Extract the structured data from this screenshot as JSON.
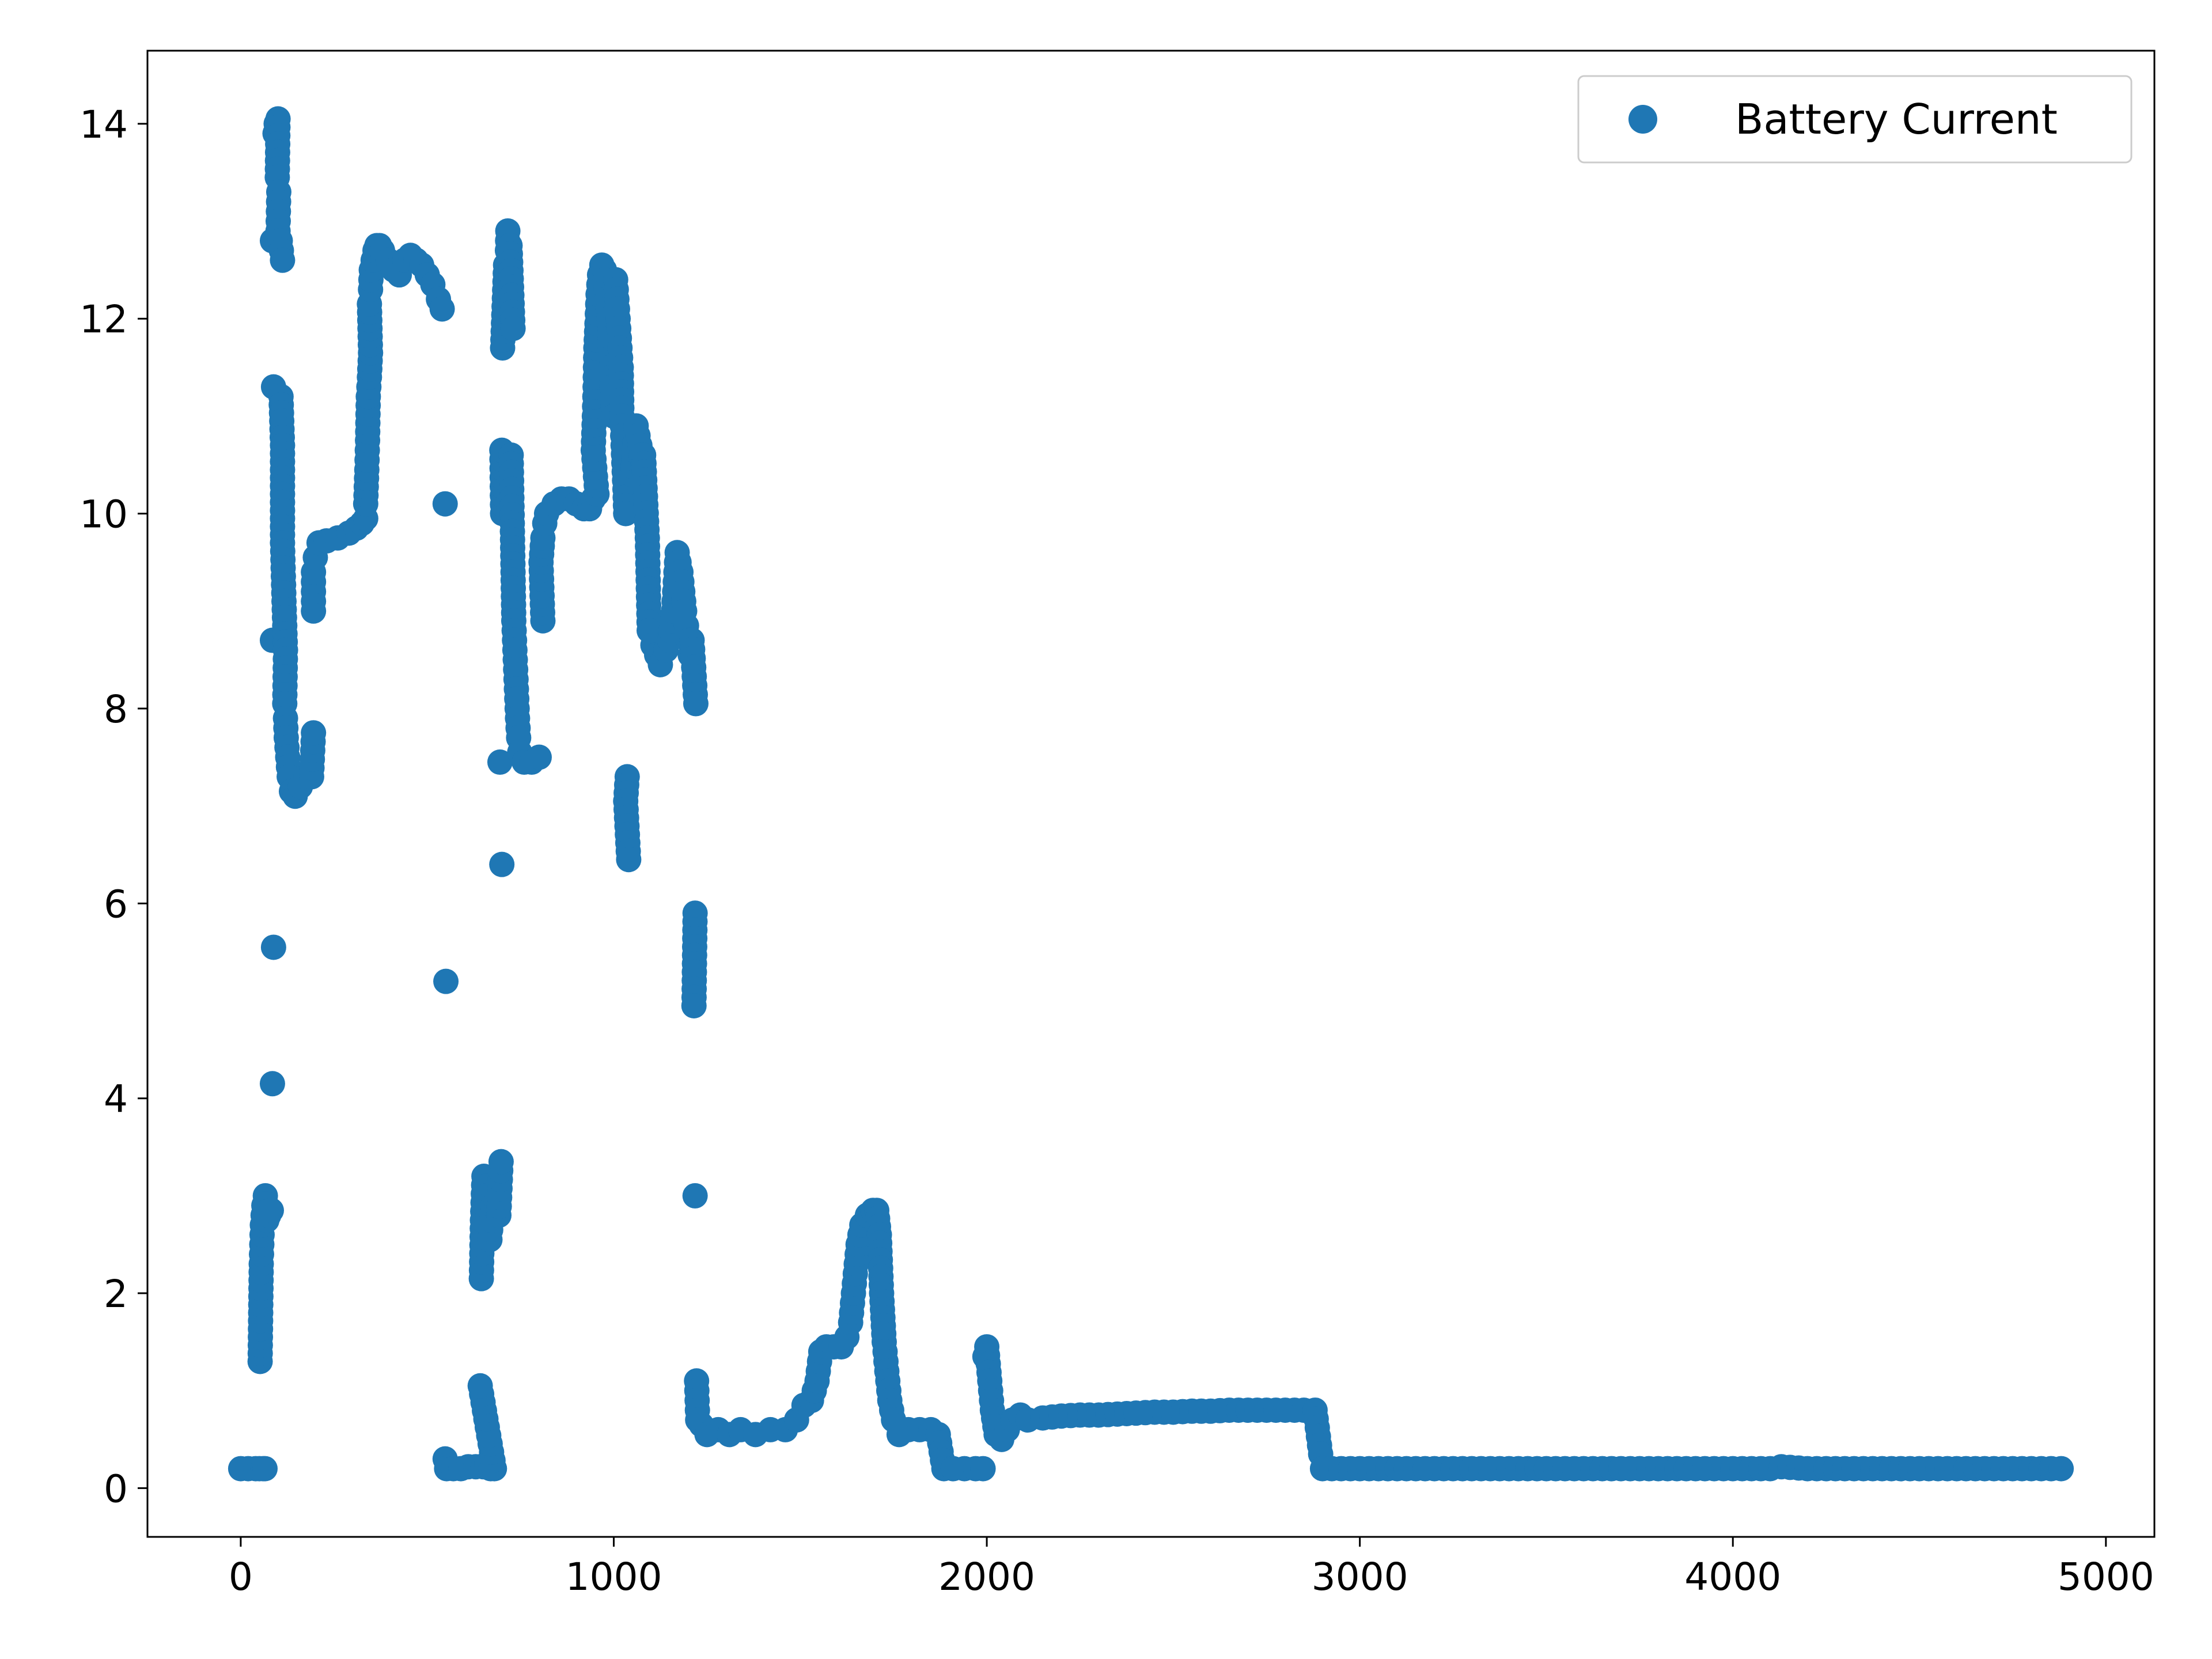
{
  "chart_data": {
    "type": "scatter",
    "title": "",
    "xlabel": "",
    "ylabel": "",
    "xlim": [
      -250,
      5130
    ],
    "ylim": [
      -0.5,
      14.75
    ],
    "xticks": [
      0,
      1000,
      2000,
      3000,
      4000,
      5000
    ],
    "yticks": [
      0,
      2,
      4,
      6,
      8,
      10,
      12,
      14
    ],
    "grid": false,
    "legend": {
      "position": "top-right",
      "entries": [
        "Battery Current"
      ]
    },
    "series": [
      {
        "name": "Battery Current",
        "color": "#1f77b4",
        "marker": "circle",
        "points": [
          [
            0,
            0.2
          ],
          [
            20,
            0.2
          ],
          [
            40,
            0.2
          ],
          [
            50,
            0.2
          ],
          [
            60,
            0.2
          ],
          [
            65,
            0.2
          ],
          [
            52,
            1.3
          ],
          [
            55,
            2.3
          ],
          [
            58,
            2.7
          ],
          [
            62,
            2.9
          ],
          [
            66,
            3.0
          ],
          [
            70,
            2.75
          ],
          [
            75,
            2.8
          ],
          [
            82,
            2.85
          ],
          [
            85,
            4.15
          ],
          [
            88,
            5.55
          ],
          [
            85,
            8.7
          ],
          [
            88,
            11.3
          ],
          [
            85,
            12.8
          ],
          [
            92,
            13.9
          ],
          [
            95,
            14.0
          ],
          [
            100,
            14.05
          ],
          [
            98,
            13.45
          ],
          [
            102,
            13.3
          ],
          [
            100,
            12.9
          ],
          [
            106,
            12.8
          ],
          [
            112,
            12.6
          ],
          [
            108,
            11.2
          ],
          [
            112,
            10.7
          ],
          [
            112,
            9.7
          ],
          [
            116,
            9.1
          ],
          [
            120,
            8.6
          ],
          [
            118,
            8.05
          ],
          [
            120,
            7.9
          ],
          [
            122,
            7.7
          ],
          [
            126,
            7.5
          ],
          [
            130,
            7.3
          ],
          [
            136,
            7.15
          ],
          [
            146,
            7.1
          ],
          [
            160,
            7.2
          ],
          [
            175,
            7.3
          ],
          [
            190,
            7.3
          ],
          [
            195,
            7.75
          ],
          [
            195,
            9.0
          ],
          [
            195,
            9.4
          ],
          [
            200,
            9.55
          ],
          [
            210,
            9.7
          ],
          [
            230,
            9.72
          ],
          [
            260,
            9.75
          ],
          [
            290,
            9.8
          ],
          [
            310,
            9.85
          ],
          [
            325,
            9.9
          ],
          [
            335,
            9.95
          ],
          [
            335,
            10.1
          ],
          [
            338,
            10.45
          ],
          [
            340,
            10.75
          ],
          [
            342,
            11.2
          ],
          [
            345,
            11.4
          ],
          [
            348,
            11.65
          ],
          [
            345,
            12.15
          ],
          [
            348,
            12.3
          ],
          [
            350,
            12.5
          ],
          [
            355,
            12.6
          ],
          [
            360,
            12.7
          ],
          [
            365,
            12.75
          ],
          [
            372,
            12.75
          ],
          [
            380,
            12.7
          ],
          [
            395,
            12.6
          ],
          [
            410,
            12.5
          ],
          [
            425,
            12.45
          ],
          [
            440,
            12.6
          ],
          [
            455,
            12.65
          ],
          [
            470,
            12.6
          ],
          [
            485,
            12.55
          ],
          [
            500,
            12.45
          ],
          [
            515,
            12.35
          ],
          [
            530,
            12.2
          ],
          [
            540,
            12.1
          ],
          [
            548,
            10.1
          ],
          [
            550,
            5.2
          ],
          [
            548,
            0.3
          ],
          [
            552,
            0.2
          ],
          [
            570,
            0.2
          ],
          [
            590,
            0.2
          ],
          [
            610,
            0.22
          ],
          [
            630,
            0.22
          ],
          [
            650,
            0.22
          ],
          [
            660,
            0.25
          ],
          [
            670,
            0.2
          ],
          [
            680,
            0.2
          ],
          [
            642,
            1.05
          ],
          [
            645,
            2.15
          ],
          [
            648,
            2.75
          ],
          [
            652,
            3.2
          ],
          [
            658,
            3.1
          ],
          [
            664,
            2.7
          ],
          [
            668,
            2.55
          ],
          [
            672,
            2.75
          ],
          [
            676,
            2.9
          ],
          [
            680,
            3.0
          ],
          [
            686,
            2.95
          ],
          [
            692,
            2.8
          ],
          [
            698,
            3.35
          ],
          [
            700,
            6.4
          ],
          [
            695,
            7.45
          ],
          [
            702,
            10.0
          ],
          [
            700,
            10.65
          ],
          [
            702,
            11.7
          ],
          [
            710,
            12.55
          ],
          [
            715,
            12.7
          ],
          [
            716,
            12.9
          ],
          [
            722,
            12.75
          ],
          [
            730,
            11.9
          ],
          [
            725,
            10.6
          ],
          [
            728,
            9.9
          ],
          [
            730,
            9.4
          ],
          [
            732,
            8.9
          ],
          [
            735,
            8.6
          ],
          [
            738,
            8.3
          ],
          [
            740,
            8.1
          ],
          [
            742,
            7.9
          ],
          [
            745,
            7.7
          ],
          [
            748,
            7.55
          ],
          [
            760,
            7.45
          ],
          [
            780,
            7.45
          ],
          [
            800,
            7.5
          ],
          [
            810,
            8.9
          ],
          [
            805,
            9.5
          ],
          [
            810,
            9.75
          ],
          [
            815,
            9.9
          ],
          [
            820,
            10.0
          ],
          [
            840,
            10.1
          ],
          [
            860,
            10.15
          ],
          [
            880,
            10.15
          ],
          [
            900,
            10.1
          ],
          [
            920,
            10.05
          ],
          [
            935,
            10.05
          ],
          [
            945,
            10.15
          ],
          [
            955,
            10.2
          ],
          [
            945,
            10.65
          ],
          [
            948,
            11.0
          ],
          [
            950,
            11.3
          ],
          [
            952,
            11.7
          ],
          [
            955,
            11.95
          ],
          [
            958,
            12.25
          ],
          [
            962,
            12.45
          ],
          [
            968,
            12.55
          ],
          [
            975,
            12.5
          ],
          [
            980,
            12.3
          ],
          [
            985,
            12.1
          ],
          [
            990,
            11.9
          ],
          [
            992,
            11.6
          ],
          [
            995,
            11.3
          ],
          [
            1000,
            11.0
          ],
          [
            1005,
            12.4
          ],
          [
            1010,
            12.1
          ],
          [
            1015,
            11.8
          ],
          [
            1020,
            11.5
          ],
          [
            1022,
            11.0
          ],
          [
            1025,
            10.7
          ],
          [
            1030,
            10.25
          ],
          [
            1032,
            10.0
          ],
          [
            1036,
            7.3
          ],
          [
            1032,
            7.05
          ],
          [
            1040,
            6.45
          ],
          [
            1050,
            10.4
          ],
          [
            1060,
            10.9
          ],
          [
            1070,
            10.7
          ],
          [
            1078,
            10.5
          ],
          [
            1080,
            10.6
          ],
          [
            1090,
            9.75
          ],
          [
            1095,
            8.8
          ],
          [
            1105,
            8.65
          ],
          [
            1115,
            8.55
          ],
          [
            1125,
            8.45
          ],
          [
            1140,
            8.6
          ],
          [
            1150,
            8.7
          ],
          [
            1160,
            9.0
          ],
          [
            1165,
            9.3
          ],
          [
            1170,
            9.6
          ],
          [
            1180,
            9.4
          ],
          [
            1185,
            9.2
          ],
          [
            1190,
            9.0
          ],
          [
            1195,
            8.85
          ],
          [
            1200,
            8.7
          ],
          [
            1205,
            8.55
          ],
          [
            1210,
            8.7
          ],
          [
            1220,
            8.05
          ],
          [
            1218,
            5.9
          ],
          [
            1215,
            4.95
          ],
          [
            1218,
            3.0
          ],
          [
            1222,
            1.1
          ],
          [
            1225,
            0.7
          ],
          [
            1235,
            0.65
          ],
          [
            1250,
            0.55
          ],
          [
            1280,
            0.6
          ],
          [
            1310,
            0.55
          ],
          [
            1340,
            0.6
          ],
          [
            1380,
            0.55
          ],
          [
            1420,
            0.6
          ],
          [
            1460,
            0.6
          ],
          [
            1490,
            0.7
          ],
          [
            1510,
            0.85
          ],
          [
            1530,
            0.9
          ],
          [
            1545,
            1.1
          ],
          [
            1555,
            1.4
          ],
          [
            1570,
            1.45
          ],
          [
            1590,
            1.45
          ],
          [
            1610,
            1.45
          ],
          [
            1625,
            1.55
          ],
          [
            1635,
            1.7
          ],
          [
            1645,
            2.1
          ],
          [
            1655,
            2.5
          ],
          [
            1665,
            2.7
          ],
          [
            1680,
            2.8
          ],
          [
            1695,
            2.85
          ],
          [
            1705,
            2.85
          ],
          [
            1712,
            2.6
          ],
          [
            1718,
            2.0
          ],
          [
            1725,
            1.5
          ],
          [
            1732,
            1.2
          ],
          [
            1740,
            0.9
          ],
          [
            1750,
            0.7
          ],
          [
            1765,
            0.55
          ],
          [
            1790,
            0.6
          ],
          [
            1820,
            0.6
          ],
          [
            1850,
            0.6
          ],
          [
            1870,
            0.55
          ],
          [
            1885,
            0.2
          ],
          [
            1910,
            0.2
          ],
          [
            1940,
            0.2
          ],
          [
            1970,
            0.2
          ],
          [
            1990,
            0.2
          ],
          [
            1995,
            1.35
          ],
          [
            2000,
            1.45
          ],
          [
            2008,
            1.1
          ],
          [
            2015,
            0.8
          ],
          [
            2025,
            0.55
          ],
          [
            2040,
            0.5
          ],
          [
            2055,
            0.6
          ],
          [
            2070,
            0.7
          ],
          [
            2090,
            0.75
          ],
          [
            2110,
            0.7
          ],
          [
            2150,
            0.72
          ],
          [
            2200,
            0.74
          ],
          [
            2250,
            0.75
          ],
          [
            2300,
            0.75
          ],
          [
            2350,
            0.76
          ],
          [
            2400,
            0.77
          ],
          [
            2450,
            0.78
          ],
          [
            2500,
            0.78
          ],
          [
            2550,
            0.79
          ],
          [
            2600,
            0.79
          ],
          [
            2650,
            0.8
          ],
          [
            2700,
            0.8
          ],
          [
            2750,
            0.8
          ],
          [
            2800,
            0.8
          ],
          [
            2850,
            0.8
          ],
          [
            2880,
            0.8
          ],
          [
            2895,
            0.35
          ],
          [
            2900,
            0.2
          ],
          [
            2950,
            0.2
          ],
          [
            3000,
            0.2
          ],
          [
            3100,
            0.2
          ],
          [
            3200,
            0.2
          ],
          [
            3300,
            0.2
          ],
          [
            3400,
            0.2
          ],
          [
            3500,
            0.2
          ],
          [
            3600,
            0.2
          ],
          [
            3700,
            0.2
          ],
          [
            3800,
            0.2
          ],
          [
            3900,
            0.2
          ],
          [
            4000,
            0.2
          ],
          [
            4100,
            0.2
          ],
          [
            4130,
            0.22
          ],
          [
            4200,
            0.2
          ],
          [
            4300,
            0.2
          ],
          [
            4400,
            0.2
          ],
          [
            4500,
            0.2
          ],
          [
            4600,
            0.2
          ],
          [
            4700,
            0.2
          ],
          [
            4800,
            0.2
          ],
          [
            4880,
            0.2
          ]
        ]
      }
    ]
  }
}
